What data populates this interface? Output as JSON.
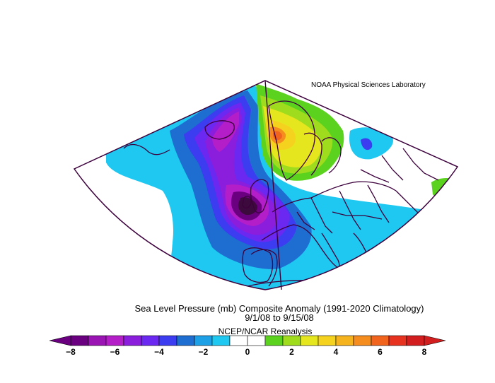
{
  "header": {
    "credit": "NOAA Physical Sciences Laboratory"
  },
  "titles": {
    "line1": "Sea Level Pressure (mb) Composite Anomaly (1991-2020 Climatology)",
    "line2": "9/1/08  to 9/15/08",
    "source": "NCEP/NCAR Reanalysis"
  },
  "colorbar": {
    "tick_labels": [
      "-8",
      "-6",
      "-4",
      "-2",
      "0",
      "2",
      "4",
      "6",
      "8"
    ],
    "min": -8,
    "max": 8,
    "interval": 1,
    "colors": [
      "#6a0080",
      "#9a14b4",
      "#b41ec8",
      "#8a1edc",
      "#6a28f0",
      "#3c3cf0",
      "#1e6ed2",
      "#1ea0e6",
      "#1ec8f0",
      "#ffffff",
      "#ffffff",
      "#5ad21e",
      "#a0dc1e",
      "#e6e61e",
      "#f5d21e",
      "#f5b41e",
      "#f58c1e",
      "#f0641e",
      "#e6321e",
      "#d21e1e"
    ]
  },
  "map": {
    "region": "Europe / North Atlantic",
    "projection": "conic sector",
    "anomaly_features": [
      {
        "label": "low",
        "value": -8,
        "color": "#3c0a3c"
      },
      {
        "label": "high",
        "value": 5,
        "color": "#f0641e"
      }
    ]
  }
}
